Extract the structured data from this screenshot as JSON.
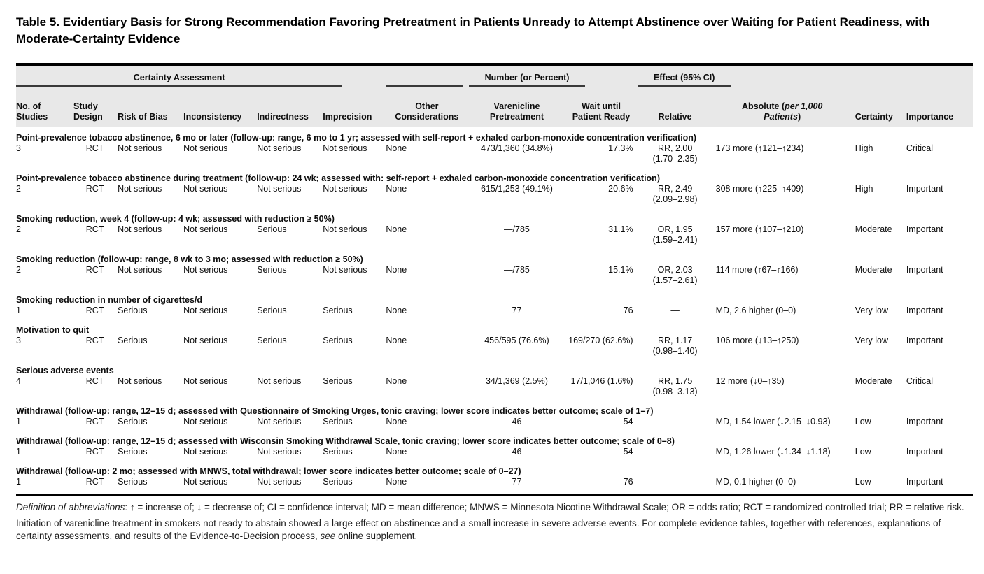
{
  "title": {
    "label": "Table 5.",
    "caption": " Evidentiary Basis for Strong Recommendation Favoring Pretreatment in Patients Unready to Attempt Abstinence over Waiting for Patient Readiness, with Moderate-Certainty Evidence"
  },
  "table": {
    "groups": {
      "certainty_assessment": "Certainty Assessment",
      "number": "Number (or Percent)",
      "effect": "Effect (95% CI)"
    },
    "columns": [
      "No. of\nStudies",
      "Study\nDesign",
      "Risk of Bias",
      "Inconsistency",
      "Indirectness",
      "Imprecision",
      "Other\nConsiderations",
      "Varenicline\nPretreatment",
      "Wait until\nPatient Ready",
      "Relative",
      {
        "pre": "Absolute (",
        "italic": "per 1,000\nPatients",
        "post": ")"
      },
      "Certainty",
      "Importance"
    ],
    "sections": [
      {
        "outcome": "Point-prevalence tobacco abstinence, 6 mo or later (follow-up: range, 6 mo to 1 yr; assessed with self-report + exhaled carbon-monoxide concentration verification)",
        "row": {
          "no_of_studies": "3",
          "study_design": "RCT",
          "risk_of_bias": "Not serious",
          "inconsistency": "Not serious",
          "indirectness": "Not serious",
          "imprecision": "Not serious",
          "other_considerations": "None",
          "varenicline_pretreatment": "473/1,360 (34.8%)",
          "wait_until_patient_ready": "17.3%",
          "relative": "RR, 2.00\n(1.70–2.35)",
          "absolute": "173 more (↑121–↑234)",
          "certainty": "High",
          "importance": "Critical"
        }
      },
      {
        "outcome": "Point-prevalence tobacco abstinence during treatment (follow-up: 24 wk; assessed with: self-report + exhaled carbon-monoxide concentration verification)",
        "row": {
          "no_of_studies": "2",
          "study_design": "RCT",
          "risk_of_bias": "Not serious",
          "inconsistency": "Not serious",
          "indirectness": "Not serious",
          "imprecision": "Not serious",
          "other_considerations": "None",
          "varenicline_pretreatment": "615/1,253 (49.1%)",
          "wait_until_patient_ready": "20.6%",
          "relative": "RR, 2.49\n(2.09–2.98)",
          "absolute": "308 more (↑225–↑409)",
          "certainty": "High",
          "importance": "Important"
        }
      },
      {
        "outcome": "Smoking reduction, week 4 (follow-up: 4 wk; assessed with reduction ≥ 50%)",
        "row": {
          "no_of_studies": "2",
          "study_design": "RCT",
          "risk_of_bias": "Not serious",
          "inconsistency": "Not serious",
          "indirectness": "Serious",
          "imprecision": "Not serious",
          "other_considerations": "None",
          "varenicline_pretreatment": "—/785",
          "wait_until_patient_ready": "31.1%",
          "relative": "OR, 1.95\n(1.59–2.41)",
          "absolute": "157 more (↑107–↑210)",
          "certainty": "Moderate",
          "importance": "Important"
        }
      },
      {
        "outcome": "Smoking reduction (follow-up: range, 8 wk to 3 mo; assessed with reduction ≥ 50%)",
        "row": {
          "no_of_studies": "2",
          "study_design": "RCT",
          "risk_of_bias": "Not serious",
          "inconsistency": "Not serious",
          "indirectness": "Serious",
          "imprecision": "Not serious",
          "other_considerations": "None",
          "varenicline_pretreatment": "—/785",
          "wait_until_patient_ready": "15.1%",
          "relative": "OR, 2.03\n(1.57–2.61)",
          "absolute": "114 more (↑67–↑166)",
          "certainty": "Moderate",
          "importance": "Important"
        }
      },
      {
        "outcome": "Smoking reduction in number of cigarettes/d",
        "row": {
          "no_of_studies": "1",
          "study_design": "RCT",
          "risk_of_bias": "Serious",
          "inconsistency": "Not serious",
          "indirectness": "Serious",
          "imprecision": "Serious",
          "other_considerations": "None",
          "varenicline_pretreatment": "77",
          "wait_until_patient_ready": "76",
          "relative": "—",
          "absolute": "MD, 2.6 higher (0–0)",
          "certainty": "Very low",
          "importance": "Important"
        }
      },
      {
        "outcome": "Motivation to quit",
        "row": {
          "no_of_studies": "3",
          "study_design": "RCT",
          "risk_of_bias": "Serious",
          "inconsistency": "Not serious",
          "indirectness": "Serious",
          "imprecision": "Serious",
          "other_considerations": "None",
          "varenicline_pretreatment": "456/595 (76.6%)",
          "wait_until_patient_ready": "169/270 (62.6%)",
          "relative": "RR, 1.17\n(0.98–1.40)",
          "absolute": "106 more (↓13–↑250)",
          "certainty": "Very low",
          "importance": "Important"
        }
      },
      {
        "outcome": "Serious adverse events",
        "row": {
          "no_of_studies": "4",
          "study_design": "RCT",
          "risk_of_bias": "Not serious",
          "inconsistency": "Not serious",
          "indirectness": "Not serious",
          "imprecision": "Serious",
          "other_considerations": "None",
          "varenicline_pretreatment": "34/1,369 (2.5%)",
          "wait_until_patient_ready": "17/1,046 (1.6%)",
          "relative": "RR, 1.75\n(0.98–3.13)",
          "absolute": "12 more (↓0–↑35)",
          "certainty": "Moderate",
          "importance": "Critical"
        }
      },
      {
        "outcome": "Withdrawal (follow-up: range, 12–15 d; assessed with Questionnaire of Smoking Urges, tonic craving; lower score indicates better outcome; scale of 1–7)",
        "row": {
          "no_of_studies": "1",
          "study_design": "RCT",
          "risk_of_bias": "Serious",
          "inconsistency": "Not serious",
          "indirectness": "Not serious",
          "imprecision": "Serious",
          "other_considerations": "None",
          "varenicline_pretreatment": "46",
          "wait_until_patient_ready": "54",
          "relative": "—",
          "absolute": "MD, 1.54 lower (↓2.15–↓0.93)",
          "certainty": "Low",
          "importance": "Important"
        }
      },
      {
        "outcome": "Withdrawal (follow-up: range, 12–15 d; assessed with Wisconsin Smoking Withdrawal Scale, tonic craving; lower score indicates better outcome; scale of 0–8)",
        "row": {
          "no_of_studies": "1",
          "study_design": "RCT",
          "risk_of_bias": "Serious",
          "inconsistency": "Not serious",
          "indirectness": "Not serious",
          "imprecision": "Serious",
          "other_considerations": "None",
          "varenicline_pretreatment": "46",
          "wait_until_patient_ready": "54",
          "relative": "—",
          "absolute": "MD, 1.26 lower (↓1.34–↓1.18)",
          "certainty": "Low",
          "importance": "Important"
        }
      },
      {
        "outcome": "Withdrawal (follow-up: 2 mo; assessed with MNWS, total withdrawal; lower score indicates better outcome; scale of 0–27)",
        "row": {
          "no_of_studies": "1",
          "study_design": "RCT",
          "risk_of_bias": "Serious",
          "inconsistency": "Not serious",
          "indirectness": "Not serious",
          "imprecision": "Serious",
          "other_considerations": "None",
          "varenicline_pretreatment": "77",
          "wait_until_patient_ready": "76",
          "relative": "—",
          "absolute": "MD, 0.1 higher (0–0)",
          "certainty": "Low",
          "importance": "Important"
        }
      }
    ]
  },
  "footnotes": {
    "abbrev_lead": "Definition of abbreviations",
    "abbrev_text": ": ↑ = increase of; ↓ = decrease of; CI = confidence interval; MD = mean difference; MNWS = Minnesota Nicotine Withdrawal Scale; OR = odds ratio; RCT = randomized controlled trial; RR = relative risk.",
    "summary_before_see": "Initiation of varenicline treatment in smokers not ready to abstain showed a large effect on abstinence and a small increase in severe adverse events. For complete evidence tables, together with references, explanations of certainty assessments, and results of the Evidence-to-Decision process, ",
    "summary_see": "see",
    "summary_after_see": " online supplement."
  }
}
